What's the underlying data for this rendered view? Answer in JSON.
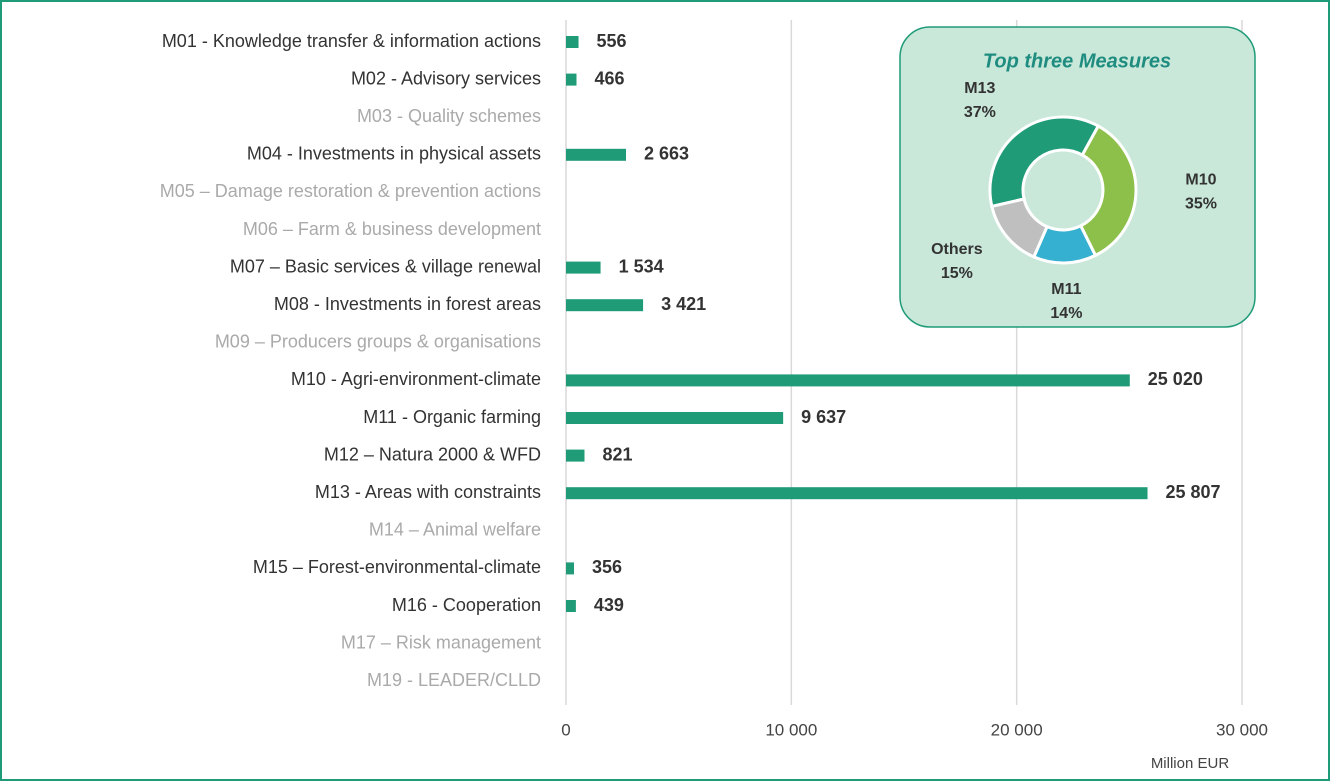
{
  "chart_data": [
    {
      "type": "bar",
      "orientation": "horizontal",
      "categories": [
        "M01 - Knowledge transfer & information actions",
        "M02 - Advisory services",
        "M03 - Quality schemes",
        "M04 - Investments in physical assets",
        "M05 – Damage restoration & prevention actions",
        "M06 – Farm & business development",
        "M07 – Basic services & village renewal",
        "M08 - Investments in forest areas",
        "M09 – Producers groups  & organisations",
        "M10 - Agri-environment-climate",
        "M11 - Organic farming",
        "M12 – Natura 2000 & WFD",
        "M13 - Areas with constraints",
        "M14 – Animal welfare",
        "M15 – Forest-environmental-climate",
        "M16 - Cooperation",
        "M17 – Risk management",
        "M19 - LEADER/CLLD"
      ],
      "values": [
        556,
        466,
        null,
        2663,
        null,
        null,
        1534,
        3421,
        null,
        25020,
        9637,
        821,
        25807,
        null,
        356,
        439,
        null,
        null
      ],
      "value_labels": [
        "556",
        "466",
        null,
        "2 663",
        null,
        null,
        "1 534",
        "3 421",
        null,
        "25 020",
        "9 637",
        "821",
        "25 807",
        null,
        "356",
        "439",
        null,
        null
      ],
      "color": "#1f9b78",
      "label_color": "#333333",
      "muted_label_color": "#aaaaaa",
      "xlim": [
        0,
        30000
      ],
      "xticks": [
        0,
        {
          "value": 10000,
          "label": "10 000"
        },
        {
          "value": 20000,
          "label": "20 000"
        },
        {
          "value": 30000,
          "label": "30 000"
        }
      ],
      "xlabel": "Million EUR",
      "grid": true
    },
    {
      "type": "pie",
      "donut": true,
      "title": "Top three Measures",
      "categories": [
        "M13",
        "M10",
        "M11",
        "Others"
      ],
      "values": [
        37,
        35,
        14,
        15
      ],
      "value_labels": [
        "37%",
        "35%",
        "14%",
        "15%"
      ],
      "colors": [
        "#1f9b78",
        "#8cc04a",
        "#35b0d0",
        "#bfbfbf"
      ]
    }
  ]
}
